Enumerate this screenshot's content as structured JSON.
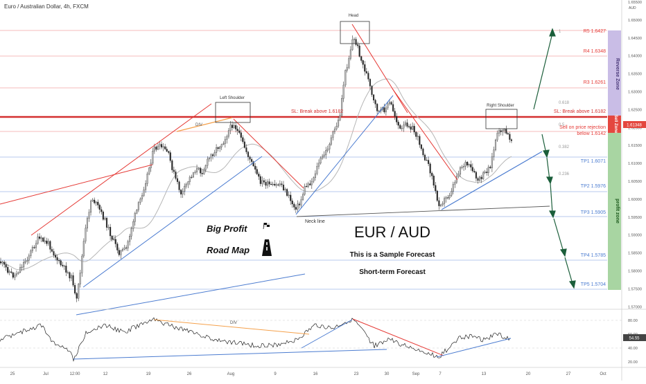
{
  "header": {
    "title": "Euro / Australian Dollar, 4h, FXCM"
  },
  "price_axis": {
    "currency": "AUD",
    "ticks": [
      "1.65500",
      "1.65000",
      "1.64500",
      "1.64000",
      "1.63500",
      "1.63000",
      "1.62500",
      "1.62000",
      "1.61500",
      "1.61000",
      "1.60500",
      "1.60000",
      "1.59500",
      "1.59000",
      "1.58500",
      "1.58000",
      "1.57500",
      "1.57000"
    ],
    "current_tag": "1.61348"
  },
  "rsi_axis": {
    "ticks": [
      "80.00",
      "60.00",
      "40.00",
      "20.00"
    ],
    "current_tag": "54.55"
  },
  "time_axis": {
    "labels": [
      "25",
      "Jul",
      "12:00",
      "12",
      "19",
      "26",
      "Aug",
      "9",
      "16",
      "23",
      "30",
      "Sep",
      "7",
      "13",
      "20",
      "27",
      "Oct"
    ]
  },
  "overlay": {
    "title": "EUR / AUD",
    "subtitle": "This is a Sample Forecast",
    "subtitle2": "Short-term Forecast",
    "big_profit": "Big Profit",
    "road_map": "Road Map",
    "div_main": "DIV",
    "div_rsi": "DIV"
  },
  "patterns": {
    "head": "Head",
    "left_shoulder": "Left Shoulder",
    "right_shoulder": "Right Shoulder",
    "neck_line": "Neck line"
  },
  "levels": {
    "r5": "R5 1.6427",
    "r4": "R4 1.6348",
    "r3": "R3 1.6261",
    "sl_left": "SL: Break above 1.6182",
    "sl_right": "SL: Break above 1.6182",
    "sell1": "Sell on price rejection",
    "sell2": "below 1.6142",
    "tp1": "TP1 1.6071",
    "tp2": "TP2 1.5976",
    "tp3": "TP3 1.5905",
    "tp4": "TP4 1.5785",
    "tp5": "TP5 1.5704"
  },
  "fib": {
    "f1": "1",
    "f618": "0.618",
    "f5": "0.5",
    "f382": "0.382",
    "f236": "0.236"
  },
  "zones": {
    "reverse": "Reverse Zone",
    "sell": "Sell Zone",
    "profit": "profit zone"
  },
  "colors": {
    "red": "#e53935",
    "blue": "#4a7bd0",
    "green_arrow": "#1b5e3a",
    "orange": "#f5a04a",
    "reverse_zone": "#c9bde6",
    "sell_zone": "#e4473f",
    "profit_zone": "#a8d5a2"
  },
  "chart_data": {
    "type": "candlestick",
    "pair": "EUR/AUD",
    "timeframe": "4h",
    "key_prices": {
      "head_high": 1.644,
      "left_shoulder_high": 1.6175,
      "right_shoulder_high": 1.6162,
      "neckline_low": 1.5905,
      "last_close": 1.61348
    },
    "levels": [
      {
        "name": "R5",
        "value": 1.6427
      },
      {
        "name": "R4",
        "value": 1.6348
      },
      {
        "name": "R3",
        "value": 1.6261
      },
      {
        "name": "SL",
        "value": 1.6182
      },
      {
        "name": "Sell",
        "value": 1.6142
      },
      {
        "name": "TP1",
        "value": 1.6071
      },
      {
        "name": "TP2",
        "value": 1.5976
      },
      {
        "name": "TP3",
        "value": 1.5905
      },
      {
        "name": "TP4",
        "value": 1.5785
      },
      {
        "name": "TP5",
        "value": 1.5704
      }
    ],
    "ylim": [
      1.568,
      1.655
    ],
    "rsi_ylim": [
      20,
      80
    ],
    "rsi_last": 54.55
  }
}
